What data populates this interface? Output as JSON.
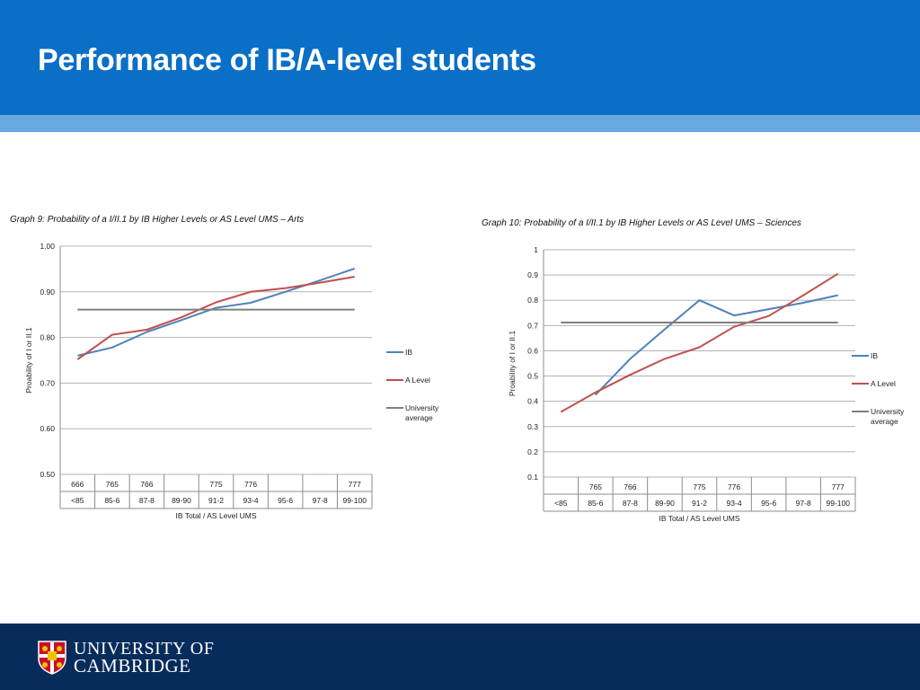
{
  "slide": {
    "title": "Performance of IB/A-level students",
    "brand_line1": "UNIVERSITY OF",
    "brand_line2": "CAMBRIDGE"
  },
  "colors": {
    "header": "#0a6fc7",
    "stripe": "#6aa9e0",
    "footer": "#052c5b",
    "ib": "#4f81bd",
    "alevel": "#c0504d",
    "average": "#7f7f7f"
  },
  "icons": {
    "logo": "university-shield-icon"
  },
  "chart_data": [
    {
      "type": "line",
      "title": "Graph 9: Probability of a I/II.1 by IB Higher Levels or AS Level UMS – Arts",
      "xlabel": "IB Total / AS Level UMS",
      "ylabel": "Proability of I or II.1",
      "ylim": [
        0.5,
        1.0
      ],
      "yticks": [
        "1.00",
        "0.90",
        "0.80",
        "0.70",
        "0.60",
        "0.50"
      ],
      "grid": true,
      "legend_position": "right",
      "categories": [
        "<85",
        "85-6",
        "87-8",
        "89-90",
        "91-2",
        "93-4",
        "95-6",
        "97-8",
        "99-100"
      ],
      "ib_totals": [
        "666",
        "765",
        "766",
        "",
        "775",
        "776",
        "",
        "",
        "777"
      ],
      "series": [
        {
          "name": "IB",
          "values": [
            0.76,
            0.778,
            0.812,
            0.838,
            0.865,
            0.876,
            0.9,
            0.925,
            0.951
          ]
        },
        {
          "name": "A Level",
          "values": [
            0.752,
            0.806,
            0.817,
            0.844,
            0.877,
            0.9,
            0.908,
            0.92,
            0.933
          ]
        },
        {
          "name": "University average",
          "legend_lines": [
            "University",
            "average"
          ],
          "values": [
            0.861,
            0.861,
            0.861,
            0.861,
            0.861,
            0.861,
            0.861,
            0.861,
            0.861
          ]
        }
      ]
    },
    {
      "type": "line",
      "title": "Graph 10: Probability of a I/II.1 by IB Higher Levels or AS Level UMS – Sciences",
      "xlabel": "IB Total / AS Level UMS",
      "ylabel": "Proability of I or II.1",
      "ylim": [
        0.1,
        1.0
      ],
      "yticks": [
        "1",
        "0.9",
        "0.8",
        "0.7",
        "0.6",
        "0.5",
        "0.4",
        "0.3",
        "0.2",
        "0.1"
      ],
      "grid": true,
      "legend_position": "right",
      "categories": [
        "<85",
        "85-6",
        "87-8",
        "89-90",
        "91-2",
        "93-4",
        "95-6",
        "97-8",
        "99-100"
      ],
      "ib_totals": [
        "",
        "765",
        "766",
        "",
        "775",
        "776",
        "",
        "",
        "777"
      ],
      "series": [
        {
          "name": "IB",
          "values": [
            null,
            0.425,
            0.568,
            0.685,
            0.8,
            0.74,
            0.765,
            0.79,
            0.82
          ]
        },
        {
          "name": "A Level",
          "values": [
            0.358,
            0.435,
            0.505,
            0.568,
            0.614,
            0.695,
            0.738,
            0.82,
            0.905
          ]
        },
        {
          "name": "University average",
          "legend_lines": [
            "University",
            "average"
          ],
          "values": [
            0.712,
            0.712,
            0.712,
            0.712,
            0.712,
            0.712,
            0.712,
            0.712,
            0.712
          ]
        }
      ]
    }
  ]
}
